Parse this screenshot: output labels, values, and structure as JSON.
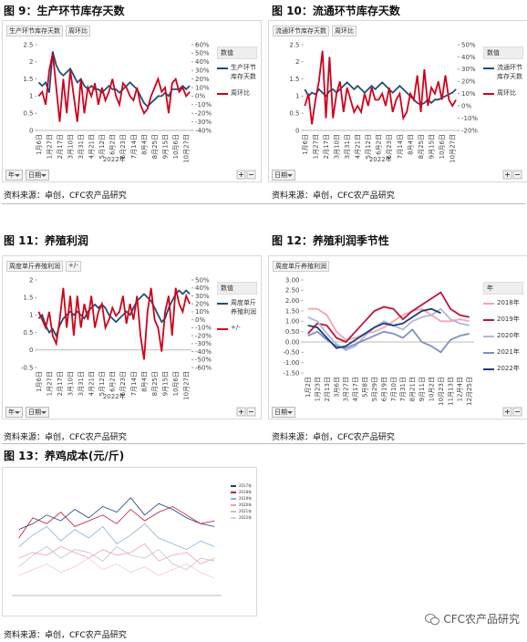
{
  "chart_data": [
    {
      "type": "line",
      "title": "图 9：生产环节库存天数",
      "fields": [
        "生产环节库存天数",
        "周环比"
      ],
      "legend_title": "数值",
      "filters": [
        "年",
        "日期"
      ],
      "xlabel": "2022年",
      "source": "资料来源：卓创，CFC农产品研究",
      "categories": [
        "1月6日",
        null,
        null,
        "1月27日",
        null,
        null,
        "2月17日",
        null,
        null,
        "3月10日",
        null,
        null,
        "3月31日",
        null,
        null,
        "4月21日",
        null,
        null,
        "5月12日",
        null,
        null,
        "6月2日",
        null,
        null,
        "6月23日",
        null,
        null,
        "7月14日",
        null,
        null,
        "8月4日",
        null,
        null,
        "8月25日",
        null,
        null,
        "9月15日",
        null,
        null,
        "10月6日",
        null,
        null,
        "10月27日",
        null
      ],
      "ylim": [
        0,
        2.5
      ],
      "yticks": [
        0,
        0.5,
        1,
        1.5,
        2,
        2.5
      ],
      "y2lim": [
        -40,
        60
      ],
      "y2ticks": [
        {
          "value": 60,
          "label": "60%"
        },
        {
          "value": 50,
          "label": "50%"
        },
        {
          "value": 40,
          "label": "40%"
        },
        {
          "value": 30,
          "label": "30%"
        },
        {
          "value": 20,
          "label": "20%"
        },
        {
          "value": 10,
          "label": "10%"
        },
        {
          "value": 0,
          "label": "0%"
        },
        {
          "value": -10,
          "label": "-10%"
        },
        {
          "value": -20,
          "label": "-20%"
        },
        {
          "value": -30,
          "label": "-30%"
        },
        {
          "value": -40,
          "label": "-40%"
        }
      ],
      "series": [
        {
          "name": "生产环节库存天数",
          "color": "#1f4e79",
          "values": [
            1.4,
            1.3,
            1.4,
            1.1,
            2.3,
            1.9,
            1.7,
            1.6,
            1.7,
            1.8,
            1.6,
            1.4,
            1.5,
            1.3,
            1.2,
            1.3,
            1.2,
            1.2,
            1.1,
            1.2,
            1.3,
            1.2,
            1.2,
            1.1,
            1.2,
            1.3,
            1.4,
            1.3,
            1.2,
            1.0,
            0.8,
            0.7,
            0.8,
            0.9,
            1.0,
            1.0,
            1.1,
            1.0,
            1.2,
            1.2,
            1.2,
            1.3,
            1.2,
            1.3
          ]
        },
        {
          "name": "周环比",
          "color": "#d0021b",
          "axis": "y2",
          "values": [
            0,
            5,
            -10,
            30,
            50,
            10,
            -30,
            20,
            -20,
            30,
            0,
            -30,
            20,
            -20,
            10,
            0,
            15,
            -10,
            10,
            -5,
            5,
            20,
            0,
            -10,
            15,
            10,
            0,
            -5,
            10,
            -10,
            -20,
            -15,
            0,
            10,
            20,
            5,
            10,
            -20,
            15,
            20,
            5,
            10,
            0,
            5
          ]
        }
      ]
    },
    {
      "type": "line",
      "title": "图 10：流通环节库存天数",
      "fields": [
        "流通环节库存天数",
        "周环比"
      ],
      "legend_title": "数值",
      "filters": [
        "日期"
      ],
      "xlabel": "2022年",
      "source": "资料来源：卓创，CFC农产品研究",
      "categories": [
        "1月6日",
        null,
        null,
        "1月27日",
        null,
        null,
        "2月17日",
        null,
        null,
        "3月10日",
        null,
        null,
        "3月31日",
        null,
        null,
        "4月21日",
        null,
        null,
        "5月12日",
        null,
        null,
        "6月2日",
        null,
        null,
        "6月23日",
        null,
        null,
        "7月14日",
        null,
        null,
        "8月4日",
        null,
        null,
        "8月25日",
        null,
        null,
        "9月15日",
        null,
        null,
        "10月6日",
        null,
        null,
        "10月27日",
        null
      ],
      "ylim": [
        0,
        2.5
      ],
      "yticks": [
        0,
        0.5,
        1,
        1.5,
        2,
        2.5
      ],
      "y2lim": [
        -20,
        50
      ],
      "y2ticks": [
        {
          "value": 50,
          "label": "50%"
        },
        {
          "value": 40,
          "label": "40%"
        },
        {
          "value": 30,
          "label": "30%"
        },
        {
          "value": 20,
          "label": "20%"
        },
        {
          "value": 10,
          "label": "10%"
        },
        {
          "value": 0,
          "label": "0%"
        },
        {
          "value": -10,
          "label": "-10%"
        },
        {
          "value": -20,
          "label": "-20%"
        }
      ],
      "series": [
        {
          "name": "流通环节库存天数",
          "color": "#1f4e79",
          "values": [
            1.2,
            1.0,
            1.1,
            1.05,
            1.2,
            1.1,
            1.0,
            1.15,
            1.2,
            1.1,
            1.2,
            1.3,
            1.4,
            1.3,
            1.2,
            1.3,
            1.2,
            1.1,
            1.2,
            1.3,
            1.2,
            1.3,
            1.4,
            1.3,
            1.2,
            1.1,
            1.2,
            1.3,
            1.2,
            1.1,
            1.0,
            0.9,
            0.8,
            0.75,
            0.8,
            0.9,
            0.8,
            0.9,
            0.9,
            0.95,
            1.0,
            1.05,
            1.1,
            1.2
          ]
        },
        {
          "name": "周环比",
          "color": "#d0021b",
          "axis": "y2",
          "values": [
            0,
            10,
            -15,
            5,
            20,
            45,
            -10,
            40,
            -10,
            10,
            20,
            -5,
            15,
            5,
            -5,
            0,
            -5,
            10,
            0,
            15,
            5,
            5,
            10,
            0,
            15,
            -5,
            5,
            10,
            -10,
            -5,
            10,
            5,
            25,
            -5,
            30,
            0,
            15,
            10,
            20,
            5,
            25,
            5,
            0,
            5
          ]
        }
      ]
    },
    {
      "type": "line",
      "title": "图 11：养殖利润",
      "fields": [
        "周度单斤养殖利润",
        "+/-"
      ],
      "legend_title": "数值",
      "filters": [
        "年",
        "日期"
      ],
      "xlabel": "2022年",
      "source": "资料来源：卓创，CFC农产品研究",
      "categories": [
        "1月6日",
        null,
        null,
        "1月27日",
        null,
        null,
        "2月17日",
        null,
        null,
        "3月10日",
        null,
        null,
        "3月31日",
        null,
        null,
        "4月21日",
        null,
        null,
        "5月12日",
        null,
        null,
        "6月2日",
        null,
        null,
        "6月23日",
        null,
        null,
        "7月14日",
        null,
        null,
        "8月4日",
        null,
        null,
        "8月25日",
        null,
        null,
        "9月15日",
        null,
        null,
        "10月6日",
        null,
        null,
        "10月27日",
        null
      ],
      "ylim": [
        -0.5,
        2
      ],
      "yticks": [
        -0.5,
        0,
        0.5,
        1,
        1.5,
        2
      ],
      "y2lim": [
        -60,
        50
      ],
      "y2ticks": [
        {
          "value": 50,
          "label": "50%"
        },
        {
          "value": 40,
          "label": "40%"
        },
        {
          "value": 30,
          "label": "30%"
        },
        {
          "value": 20,
          "label": "20%"
        },
        {
          "value": 10,
          "label": "10%"
        },
        {
          "value": 0,
          "label": "0%"
        },
        {
          "value": -10,
          "label": "-10%"
        },
        {
          "value": -20,
          "label": "-20%"
        },
        {
          "value": -30,
          "label": "-30%"
        },
        {
          "value": -40,
          "label": "-40%"
        },
        {
          "value": -50,
          "label": "-50%"
        },
        {
          "value": -60,
          "label": "-60%"
        }
      ],
      "series": [
        {
          "name": "周度单斤养殖利润",
          "color": "#1f4e79",
          "values": [
            0.9,
            1.0,
            0.7,
            0.5,
            0.6,
            0.4,
            0.7,
            0.9,
            1.0,
            1.1,
            1.0,
            1.1,
            1.0,
            0.9,
            1.1,
            1.2,
            1.3,
            1.2,
            1.3,
            1.2,
            1.0,
            0.9,
            0.8,
            0.9,
            1.0,
            1.1,
            1.0,
            1.2,
            1.4,
            1.5,
            1.6,
            1.5,
            1.4,
            1.2,
            1.0,
            0.8,
            0.9,
            1.2,
            1.4,
            1.6,
            1.7,
            1.6,
            1.7,
            1.6
          ]
        },
        {
          "name": "+/-",
          "color": "#d0021b",
          "axis": "y2",
          "values": [
            10,
            0,
            -10,
            10,
            -20,
            -30,
            0,
            40,
            -10,
            30,
            -20,
            30,
            -10,
            20,
            0,
            30,
            -10,
            10,
            20,
            -10,
            0,
            15,
            5,
            10,
            30,
            -5,
            20,
            0,
            30,
            -20,
            -50,
            10,
            40,
            0,
            -10,
            -40,
            10,
            30,
            -20,
            40,
            20,
            10,
            30,
            20
          ]
        }
      ]
    },
    {
      "type": "line",
      "title": "图 12：养殖利润季节性",
      "fields": [
        "周度单斤养殖利润"
      ],
      "legend_title": "年",
      "filters": [
        "日期"
      ],
      "source": "资料来源：卓创，CFC农产品研究",
      "categories": [
        "1月2日",
        "1月23日",
        "2月13日",
        "3月6日",
        "3月27日",
        "4月17日",
        "5月8日",
        "5月29日",
        "6月19日",
        "7月10日",
        "7月31日",
        "8月21日",
        "9月11日",
        "10月2日",
        "10月23日",
        "11月13日",
        "12月4日",
        "12月25日"
      ],
      "ylim": [
        -1.5,
        3
      ],
      "yticks": [
        {
          "value": 3,
          "label": "3.00"
        },
        {
          "value": 2.5,
          "label": "2.50"
        },
        {
          "value": 2,
          "label": "2.00"
        },
        {
          "value": 1.5,
          "label": "1.50"
        },
        {
          "value": 1,
          "label": "1.00"
        },
        {
          "value": 0.5,
          "label": "0.50"
        },
        {
          "value": 0,
          "label": "0.00"
        },
        {
          "value": -0.5,
          "label": "-0.50"
        },
        {
          "value": -1,
          "label": "-1.00"
        },
        {
          "value": -1.5,
          "label": "-1.50"
        }
      ],
      "series": [
        {
          "name": "2018年",
          "color": "#f4a6b0",
          "values": [
            1.6,
            1.6,
            1.3,
            0.5,
            0.1,
            0.2,
            0.4,
            0.5,
            0.7,
            1.0,
            1.3,
            1.5,
            1.6,
            1.3,
            1.0,
            1.0,
            1.1,
            1.0
          ]
        },
        {
          "name": "2019年",
          "color": "#c0143c",
          "values": [
            0.4,
            0.9,
            0.8,
            0.2,
            0.0,
            0.5,
            1.0,
            1.5,
            1.7,
            1.6,
            1.1,
            1.5,
            1.8,
            2.1,
            2.4,
            1.6,
            1.3,
            1.2
          ]
        },
        {
          "name": "2020年",
          "color": "#b0b8d8",
          "values": [
            1.2,
            1.0,
            0.4,
            -0.1,
            -0.4,
            -0.2,
            0.3,
            0.7,
            1.0,
            0.8,
            0.6,
            1.0,
            1.2,
            1.3,
            1.6,
            1.1,
            0.9,
            0.8
          ]
        },
        {
          "name": "2021年",
          "color": "#8090c0",
          "values": [
            0.3,
            0.5,
            0.1,
            -0.2,
            -0.3,
            -0.1,
            0.1,
            0.3,
            0.5,
            0.4,
            0.2,
            0.6,
            0.0,
            -0.2,
            -0.5,
            0.1,
            0.3,
            0.4
          ]
        },
        {
          "name": "2022年",
          "color": "#1f3d7a",
          "values": [
            0.8,
            0.7,
            0.2,
            -0.3,
            -0.2,
            0.1,
            0.4,
            0.7,
            0.9,
            0.8,
            0.9,
            1.2,
            1.5,
            1.6,
            1.4,
            null,
            null,
            null
          ]
        }
      ]
    },
    {
      "type": "line",
      "title": "图 13：养鸡成本(元/斤)",
      "source": "资料来源：卓创，CFC农产品研究",
      "categories": [
        null,
        null,
        null,
        null,
        null,
        null,
        null,
        null,
        null,
        null,
        null,
        null,
        null,
        null,
        null
      ],
      "ylim": [
        1.5,
        5.5
      ],
      "series": [
        {
          "name": "2017年",
          "color": "#1f3d7a",
          "values": [
            3.8,
            4.0,
            4.3,
            4.1,
            4.5,
            4.2,
            4.6,
            4.4,
            4.9,
            4.3,
            4.7,
            4.5,
            4.2,
            4.0,
            3.9
          ]
        },
        {
          "name": "2018年",
          "color": "#c0143c",
          "values": [
            3.5,
            4.2,
            4.0,
            4.4,
            3.9,
            4.1,
            4.3,
            4.0,
            4.5,
            4.1,
            4.4,
            4.6,
            4.3,
            4.0,
            4.1
          ]
        },
        {
          "name": "2019年",
          "color": "#8fb0d8",
          "values": [
            3.2,
            3.6,
            3.9,
            3.4,
            3.8,
            3.5,
            3.9,
            3.3,
            3.6,
            4.0,
            3.5,
            3.3,
            3.1,
            3.4,
            3.2
          ]
        },
        {
          "name": "2020年",
          "color": "#f0a0a8",
          "values": [
            2.8,
            3.0,
            2.9,
            3.2,
            3.0,
            2.8,
            3.1,
            2.9,
            3.0,
            3.3,
            2.7,
            2.9,
            3.0,
            2.6,
            2.8
          ]
        },
        {
          "name": "2021年",
          "color": "#c0c4d0",
          "values": [
            2.5,
            2.9,
            3.2,
            2.8,
            3.1,
            3.0,
            2.7,
            3.2,
            2.9,
            2.8,
            3.1,
            2.6,
            2.4,
            2.8,
            2.7
          ]
        },
        {
          "name": "2022年",
          "color": "#f8c8cc",
          "values": [
            2.2,
            2.4,
            2.6,
            2.3,
            2.5,
            2.8,
            2.4,
            2.6,
            2.3,
            2.5,
            2.2,
            2.4,
            2.6,
            2.3,
            2.1
          ]
        }
      ]
    }
  ],
  "watermark": "CFC农产品研究"
}
